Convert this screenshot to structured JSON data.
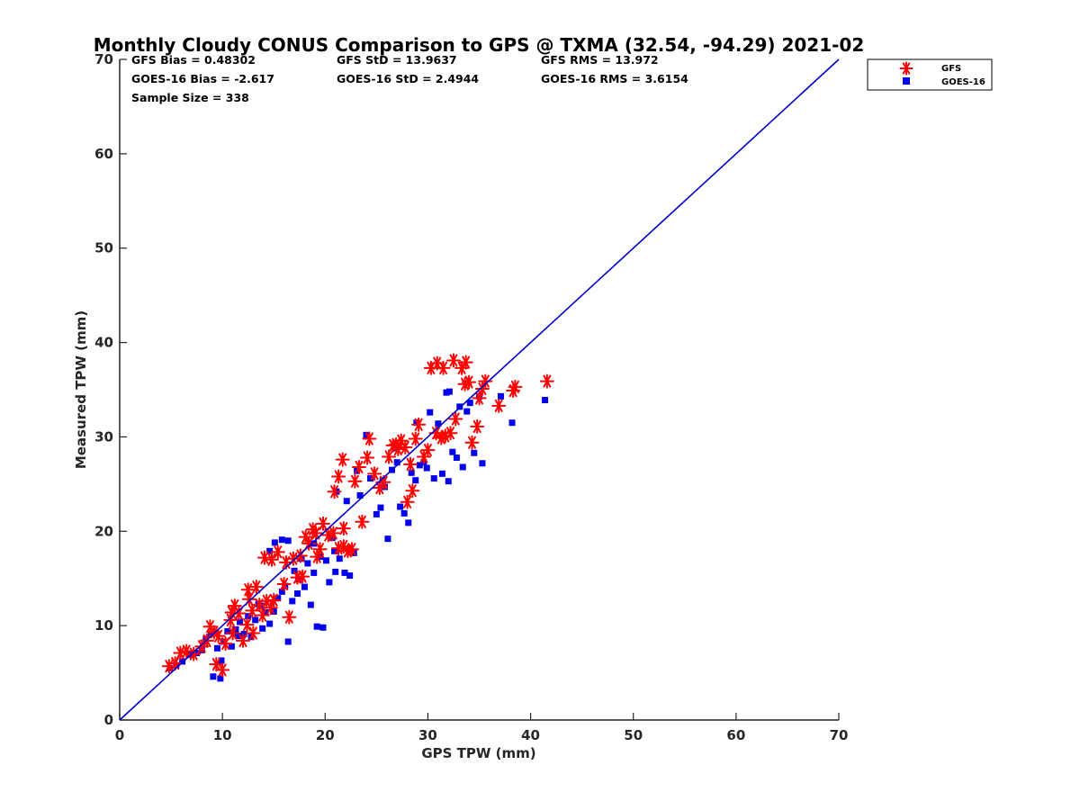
{
  "colors": {
    "gfs": "#ff0000",
    "goes": "#0000ee",
    "line": "#0000cc",
    "axis": "#262626"
  },
  "chart_data": {
    "type": "scatter",
    "title": "Monthly Cloudy CONUS Comparison to GPS @ TXMA (32.54, -94.29) 2021-02",
    "xlabel": "GPS TPW (mm)",
    "ylabel": "Measured TPW (mm)",
    "xlim": [
      0,
      70
    ],
    "ylim": [
      0,
      70
    ],
    "xticks": [
      0,
      10,
      20,
      30,
      40,
      50,
      60,
      70
    ],
    "yticks": [
      0,
      10,
      20,
      30,
      40,
      50,
      60,
      70
    ],
    "reference_line": {
      "x": [
        0,
        70
      ],
      "y": [
        0,
        70
      ]
    },
    "stats": {
      "gfs_bias": "GFS Bias = 0.48302",
      "goes_bias": "GOES-16 Bias = -2.617",
      "sample_size": "Sample Size = 338",
      "gfs_std": "GFS StD = 13.9637",
      "goes_std": "GOES-16 StD = 2.4944",
      "gfs_rms": "GFS RMS = 13.972",
      "goes_rms": "GOES-16 RMS = 3.6154"
    },
    "legend": {
      "position": "top-right",
      "entries": [
        "GFS",
        "GOES-16"
      ]
    },
    "series": [
      {
        "name": "GFS",
        "marker": "asterisk",
        "points": [
          [
            4.8,
            5.7
          ],
          [
            5.4,
            6.0
          ],
          [
            5.9,
            7.1
          ],
          [
            6.5,
            7.3
          ],
          [
            7.2,
            7.0
          ],
          [
            8.0,
            7.8
          ],
          [
            8.5,
            8.4
          ],
          [
            8.8,
            9.9
          ],
          [
            9.2,
            9.3
          ],
          [
            9.6,
            8.9
          ],
          [
            9.4,
            5.9
          ],
          [
            10.0,
            5.3
          ],
          [
            10.3,
            8.1
          ],
          [
            10.8,
            10.6
          ],
          [
            11.0,
            9.2
          ],
          [
            11.2,
            12.1
          ],
          [
            11.6,
            11.3
          ],
          [
            12.0,
            8.4
          ],
          [
            12.4,
            10.1
          ],
          [
            12.6,
            12.8
          ],
          [
            12.9,
            11.6
          ],
          [
            13.3,
            14.1
          ],
          [
            13.6,
            12.2
          ],
          [
            13.9,
            11.1
          ],
          [
            14.3,
            12.6
          ],
          [
            14.7,
            11.9
          ],
          [
            15.0,
            12.7
          ],
          [
            12.5,
            13.8
          ],
          [
            14.1,
            17.2
          ],
          [
            14.8,
            17.0
          ],
          [
            15.4,
            17.8
          ],
          [
            16.2,
            16.7
          ],
          [
            16.5,
            10.9
          ],
          [
            16.9,
            17.1
          ],
          [
            17.3,
            15.1
          ],
          [
            17.6,
            17.4
          ],
          [
            18.1,
            19.4
          ],
          [
            18.4,
            18.7
          ],
          [
            18.8,
            20.2
          ],
          [
            19.1,
            19.8
          ],
          [
            19.5,
            18.1
          ],
          [
            19.8,
            20.8
          ],
          [
            20.3,
            19.6
          ],
          [
            20.8,
            19.8
          ],
          [
            21.3,
            18.2
          ],
          [
            21.8,
            18.4
          ],
          [
            22.2,
            17.9
          ],
          [
            22.6,
            18.1
          ],
          [
            21.8,
            20.3
          ],
          [
            20.9,
            24.2
          ],
          [
            21.3,
            25.8
          ],
          [
            21.7,
            27.6
          ],
          [
            23.6,
            21.0
          ],
          [
            23.3,
            26.8
          ],
          [
            24.1,
            27.8
          ],
          [
            24.3,
            29.8
          ],
          [
            24.8,
            26.1
          ],
          [
            25.3,
            24.6
          ],
          [
            25.7,
            25.2
          ],
          [
            26.2,
            27.9
          ],
          [
            26.6,
            29.1
          ],
          [
            27.1,
            28.7
          ],
          [
            27.4,
            29.6
          ],
          [
            27.8,
            28.9
          ],
          [
            28.0,
            23.1
          ],
          [
            28.5,
            24.3
          ],
          [
            28.3,
            27.1
          ],
          [
            28.8,
            29.8
          ],
          [
            29.1,
            31.3
          ],
          [
            29.6,
            27.9
          ],
          [
            30.0,
            28.6
          ],
          [
            30.3,
            37.3
          ],
          [
            30.9,
            37.8
          ],
          [
            31.3,
            29.9
          ],
          [
            31.5,
            37.3
          ],
          [
            32.2,
            30.4
          ],
          [
            32.5,
            38.1
          ],
          [
            32.7,
            31.9
          ],
          [
            33.3,
            37.3
          ],
          [
            33.7,
            37.9
          ],
          [
            33.6,
            35.6
          ],
          [
            34.0,
            35.8
          ],
          [
            34.3,
            29.4
          ],
          [
            34.8,
            31.1
          ],
          [
            35.0,
            34.1
          ],
          [
            35.3,
            35.1
          ],
          [
            35.6,
            35.9
          ],
          [
            36.9,
            33.3
          ],
          [
            38.3,
            34.9
          ],
          [
            38.5,
            35.3
          ],
          [
            41.6,
            35.9
          ],
          [
            31.7,
            30.1
          ],
          [
            30.8,
            30.4
          ],
          [
            26.9,
            29.2
          ],
          [
            22.9,
            25.3
          ],
          [
            19.2,
            17.3
          ],
          [
            17.8,
            15.2
          ],
          [
            16.0,
            14.4
          ],
          [
            13.0,
            9.2
          ],
          [
            10.9,
            11.4
          ]
        ]
      },
      {
        "name": "GOES-16",
        "marker": "square",
        "points": [
          [
            4.9,
            5.5
          ],
          [
            5.5,
            5.8
          ],
          [
            6.1,
            6.2
          ],
          [
            6.8,
            6.9
          ],
          [
            7.5,
            7.1
          ],
          [
            8.0,
            7.4
          ],
          [
            8.4,
            8.6
          ],
          [
            8.9,
            9.1
          ],
          [
            9.1,
            4.6
          ],
          [
            9.8,
            4.4
          ],
          [
            9.5,
            7.6
          ],
          [
            10.1,
            8.3
          ],
          [
            10.5,
            9.4
          ],
          [
            10.9,
            7.8
          ],
          [
            11.3,
            9.6
          ],
          [
            11.7,
            10.4
          ],
          [
            12.1,
            9.1
          ],
          [
            12.5,
            11.0
          ],
          [
            12.8,
            8.8
          ],
          [
            13.2,
            10.6
          ],
          [
            13.5,
            12.3
          ],
          [
            13.9,
            9.7
          ],
          [
            14.2,
            11.4
          ],
          [
            14.6,
            10.2
          ],
          [
            15.0,
            11.5
          ],
          [
            15.4,
            12.9
          ],
          [
            15.8,
            13.6
          ],
          [
            16.1,
            14.2
          ],
          [
            16.4,
            8.3
          ],
          [
            16.8,
            12.6
          ],
          [
            17.0,
            15.8
          ],
          [
            17.3,
            13.4
          ],
          [
            17.7,
            17.1
          ],
          [
            18.0,
            14.1
          ],
          [
            18.3,
            16.6
          ],
          [
            18.6,
            12.2
          ],
          [
            18.9,
            18.7
          ],
          [
            19.2,
            9.9
          ],
          [
            19.5,
            17.3
          ],
          [
            19.8,
            9.8
          ],
          [
            20.1,
            16.9
          ],
          [
            20.4,
            14.6
          ],
          [
            20.7,
            19.3
          ],
          [
            21.0,
            15.7
          ],
          [
            21.4,
            17.1
          ],
          [
            21.9,
            15.6
          ],
          [
            22.4,
            15.3
          ],
          [
            22.8,
            17.7
          ],
          [
            14.6,
            17.9
          ],
          [
            15.1,
            18.8
          ],
          [
            15.8,
            19.1
          ],
          [
            16.4,
            19.0
          ],
          [
            21.1,
            24.2
          ],
          [
            22.1,
            23.2
          ],
          [
            23.1,
            26.4
          ],
          [
            23.4,
            23.8
          ],
          [
            24.0,
            30.2
          ],
          [
            24.4,
            25.6
          ],
          [
            25.0,
            21.8
          ],
          [
            25.4,
            22.5
          ],
          [
            25.8,
            24.7
          ],
          [
            26.1,
            19.2
          ],
          [
            26.5,
            26.5
          ],
          [
            27.0,
            27.3
          ],
          [
            27.3,
            22.6
          ],
          [
            27.7,
            21.9
          ],
          [
            28.1,
            20.9
          ],
          [
            28.4,
            26.2
          ],
          [
            28.8,
            25.4
          ],
          [
            29.2,
            27.0
          ],
          [
            29.6,
            27.3
          ],
          [
            29.9,
            26.7
          ],
          [
            30.2,
            32.6
          ],
          [
            30.6,
            25.6
          ],
          [
            31.0,
            31.4
          ],
          [
            31.4,
            26.1
          ],
          [
            31.8,
            34.7
          ],
          [
            32.1,
            34.8
          ],
          [
            32.4,
            28.4
          ],
          [
            32.8,
            27.8
          ],
          [
            33.1,
            33.2
          ],
          [
            33.4,
            26.8
          ],
          [
            33.8,
            32.7
          ],
          [
            34.1,
            33.6
          ],
          [
            34.5,
            28.3
          ],
          [
            35.0,
            34.3
          ],
          [
            35.3,
            27.2
          ],
          [
            37.1,
            34.3
          ],
          [
            38.2,
            31.5
          ],
          [
            41.4,
            33.9
          ],
          [
            32.0,
            25.3
          ],
          [
            28.9,
            31.5
          ],
          [
            26.9,
            28.8
          ],
          [
            25.6,
            25.4
          ],
          [
            20.9,
            17.9
          ],
          [
            18.9,
            15.6
          ],
          [
            17.4,
            14.9
          ],
          [
            13.8,
            12.1
          ],
          [
            11.5,
            8.9
          ],
          [
            9.9,
            6.3
          ]
        ]
      }
    ]
  }
}
